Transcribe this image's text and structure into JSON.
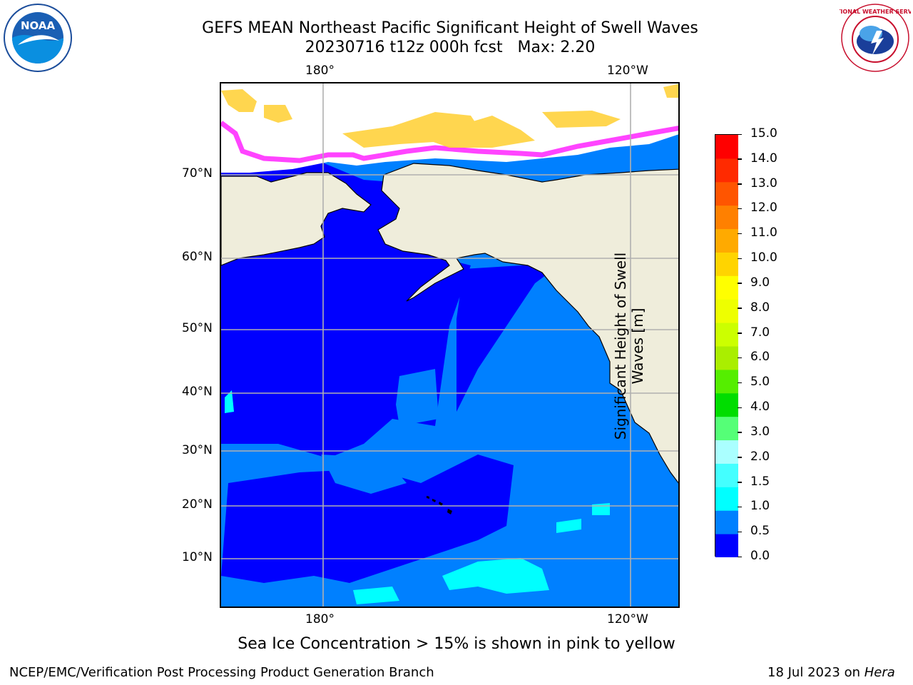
{
  "header": {
    "title_line1": "GEFS MEAN Northeast Pacific Significant Height of Swell Waves",
    "title_line2": "20230716 t12z 000h fcst   Max: 2.20"
  },
  "map": {
    "lon_labels_top": [
      "180°",
      "120°W"
    ],
    "lon_labels_bottom": [
      "180°",
      "120°W"
    ],
    "lat_labels": [
      "70°N",
      "60°N",
      "50°N",
      "40°N",
      "30°N",
      "20°N",
      "10°N"
    ],
    "colors": {
      "ocean_low": "#0000ff",
      "ocean_mid": "#0080ff",
      "ocean_cyan": "#00ffff",
      "land": "#efeddb",
      "ice_pink": "#ff44ff",
      "ice_yellow": "#ffd700",
      "grid": "#b0b0b0"
    }
  },
  "colorbar": {
    "title_line1": "Significant Height of Swell",
    "title_line2": "Waves [m]",
    "tick_labels": [
      "15.0",
      "14.0",
      "13.0",
      "12.0",
      "11.0",
      "10.0",
      "9.0",
      "8.0",
      "7.0",
      "6.0",
      "5.0",
      "4.0",
      "3.0",
      "2.0",
      "1.5",
      "1.0",
      "0.5",
      "0.0"
    ],
    "band_colors": [
      "#0000ff",
      "#0080ff",
      "#00ffff",
      "#44ffff",
      "#aaffff",
      "#55ff77",
      "#00dd00",
      "#55ee00",
      "#aaee00",
      "#ccff00",
      "#eeff00",
      "#ffff00",
      "#ffd400",
      "#ffaa00",
      "#ff8000",
      "#ff5500",
      "#ff2a00",
      "#ff0000"
    ]
  },
  "footer": {
    "note": "Sea Ice Concentration > 15% is shown in pink to yellow",
    "left": "NCEP/EMC/Verification Post Processing Product Generation Branch",
    "right_prefix": "18 Jul 2023 on ",
    "right_host": "Hera"
  },
  "logos": {
    "noaa_text": "NOAA",
    "nws_text": "NATIONAL WEATHER SERVICE"
  }
}
